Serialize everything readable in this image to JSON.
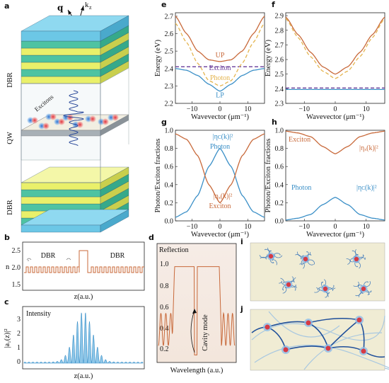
{
  "colors": {
    "orange": "#c8693a",
    "blue": "#3a8fc7",
    "dash_yellow": "#e4b44e",
    "dash_purple": "#6a3d9a",
    "dbr_yellow": "#eaf06a",
    "dbr_green": "#4ec3a2",
    "dbr_cyan": "#6cc7e6",
    "qw_gray": "#a8b0b6",
    "pane_bg": "#f0ecd4"
  },
  "panel_labels": {
    "a": "a",
    "b": "b",
    "c": "c",
    "d": "d",
    "e": "e",
    "f": "f",
    "g": "g",
    "h": "h",
    "i": "i",
    "j": "j"
  },
  "panel_a": {
    "vec_q": "q",
    "vec_k": "k",
    "vec_kz": "k",
    "vec_kz_sub": "z",
    "dbr_top": "DBR",
    "qw": "QW",
    "dbr_bottom": "DBR",
    "excitons": "Excitons"
  },
  "panel_b": {
    "ylabel": "n",
    "xlabel": "z(a.u.)",
    "dbr_left": "DBR",
    "dbr_right": "DBR",
    "yticks": [
      "2.5",
      "2.0",
      "1.5"
    ]
  },
  "panel_c": {
    "ylabel": "|a₁(z)|²",
    "xlabel": "z(a.u.)",
    "title": "Intensity",
    "yticks": [
      "3",
      "2",
      "1",
      "0"
    ]
  },
  "panel_d": {
    "title": "Reflection",
    "xlabel": "Wavelength (a.u.)",
    "annotation": "Cavity mode",
    "yticks": [
      "1.0",
      "0.8",
      "0.6",
      "0.4",
      "0.2"
    ]
  },
  "panel_e": {
    "ylabel": "Energy (eV)",
    "xlabel": "Wavevector (μm⁻¹)",
    "up": "UP",
    "exciton": "Exciton",
    "photon": "Photon",
    "lp": "LP",
    "yticks": [
      "2.7",
      "2.6",
      "2.5",
      "2.4",
      "2.3",
      "2.2"
    ],
    "xticks": [
      "-10",
      "0",
      "10"
    ]
  },
  "panel_f": {
    "ylabel": "Energy (eV)",
    "xlabel": "Wavevector (μm⁻¹)",
    "yticks": [
      "2.9",
      "2.8",
      "2.7",
      "2.6",
      "2.5",
      "2.4",
      "2.3"
    ],
    "xticks": [
      "-10",
      "0",
      "10"
    ]
  },
  "panel_g": {
    "ylabel": "Photon/Exciton fractions",
    "xlabel": "Wavevector (μm⁻¹)",
    "photon": "Photon",
    "exciton": "Exciton",
    "eq_c": "|ηᴄ(k)|²",
    "eq_x": "|ηₓ(k)|²",
    "yticks": [
      "1.0",
      "0.8",
      "0.6",
      "0.4",
      "0.2",
      "0.0"
    ],
    "xticks": [
      "-10",
      "0",
      "10"
    ]
  },
  "panel_h": {
    "ylabel": "Photon/Exciton fractions",
    "xlabel": "Wavevector (μm⁻¹)",
    "photon": "Photon",
    "exciton": "Exciton",
    "eq_c": "|ηᴄ(k)|²",
    "eq_x": "|ηₓ(k)|²",
    "yticks": [
      "1.0",
      "0.8",
      "0.6",
      "0.4",
      "0.2",
      "0.0"
    ],
    "xticks": [
      "-10",
      "0",
      "10"
    ]
  },
  "chart_data": [
    {
      "id": "e",
      "type": "line",
      "xlabel": "Wavevector (μm⁻¹)",
      "ylabel": "Energy (eV)",
      "xlim": [
        -16,
        16
      ],
      "ylim": [
        2.2,
        2.72
      ],
      "series": [
        {
          "name": "UP",
          "x": [
            -16,
            -12,
            -8,
            -4,
            0,
            4,
            8,
            12,
            16
          ],
          "values": [
            2.7,
            2.6,
            2.5,
            2.45,
            2.44,
            2.45,
            2.5,
            2.6,
            2.7
          ]
        },
        {
          "name": "Exciton",
          "x": [
            -16,
            16
          ],
          "values": [
            2.41,
            2.41
          ]
        },
        {
          "name": "Photon",
          "x": [
            -16,
            -12,
            -8,
            -4,
            0,
            4,
            8,
            12,
            16
          ],
          "values": [
            2.66,
            2.55,
            2.43,
            2.33,
            2.3,
            2.33,
            2.43,
            2.55,
            2.66
          ]
        },
        {
          "name": "LP",
          "x": [
            -16,
            -12,
            -8,
            -4,
            0,
            4,
            8,
            12,
            16
          ],
          "values": [
            2.4,
            2.39,
            2.36,
            2.31,
            2.27,
            2.31,
            2.36,
            2.39,
            2.4
          ]
        }
      ]
    },
    {
      "id": "f",
      "type": "line",
      "xlabel": "Wavevector (μm⁻¹)",
      "ylabel": "Energy (eV)",
      "xlim": [
        -16,
        16
      ],
      "ylim": [
        2.3,
        2.92
      ],
      "series": [
        {
          "x": [
            -16,
            -12,
            -8,
            -4,
            0,
            4,
            8,
            12,
            16
          ],
          "values": [
            2.89,
            2.77,
            2.65,
            2.55,
            2.5,
            2.55,
            2.65,
            2.77,
            2.89
          ]
        },
        {
          "x": [
            -16,
            -12,
            -8,
            -4,
            0,
            4,
            8,
            12,
            16
          ],
          "values": [
            2.88,
            2.75,
            2.62,
            2.52,
            2.47,
            2.52,
            2.62,
            2.75,
            2.88
          ]
        },
        {
          "x": [
            -16,
            16
          ],
          "values": [
            2.405,
            2.405
          ]
        },
        {
          "x": [
            -16,
            16
          ],
          "values": [
            2.395,
            2.395
          ]
        }
      ]
    },
    {
      "id": "g",
      "type": "line",
      "xlabel": "Wavevector (μm⁻¹)",
      "ylabel": "Photon/Exciton fractions",
      "xlim": [
        -16,
        16
      ],
      "ylim": [
        0,
        1
      ],
      "series": [
        {
          "name": "Photon",
          "x": [
            -16,
            -12,
            -8,
            -4,
            0,
            4,
            8,
            12,
            16
          ],
          "values": [
            0.04,
            0.1,
            0.28,
            0.6,
            0.8,
            0.6,
            0.28,
            0.1,
            0.04
          ]
        },
        {
          "name": "Exciton",
          "x": [
            -16,
            -12,
            -8,
            -4,
            0,
            4,
            8,
            12,
            16
          ],
          "values": [
            0.96,
            0.9,
            0.72,
            0.4,
            0.2,
            0.4,
            0.72,
            0.9,
            0.96
          ]
        }
      ]
    },
    {
      "id": "h",
      "type": "line",
      "xlabel": "Wavevector (μm⁻¹)",
      "ylabel": "Photon/Exciton fractions",
      "xlim": [
        -16,
        16
      ],
      "ylim": [
        0,
        1
      ],
      "series": [
        {
          "name": "Exciton",
          "x": [
            -16,
            -12,
            -8,
            -4,
            0,
            4,
            8,
            12,
            16
          ],
          "values": [
            0.99,
            0.97,
            0.93,
            0.82,
            0.74,
            0.82,
            0.93,
            0.97,
            0.99
          ]
        },
        {
          "name": "Photon",
          "x": [
            -16,
            -12,
            -8,
            -4,
            0,
            4,
            8,
            12,
            16
          ],
          "values": [
            0.01,
            0.03,
            0.07,
            0.18,
            0.26,
            0.18,
            0.07,
            0.03,
            0.01
          ]
        }
      ]
    }
  ]
}
